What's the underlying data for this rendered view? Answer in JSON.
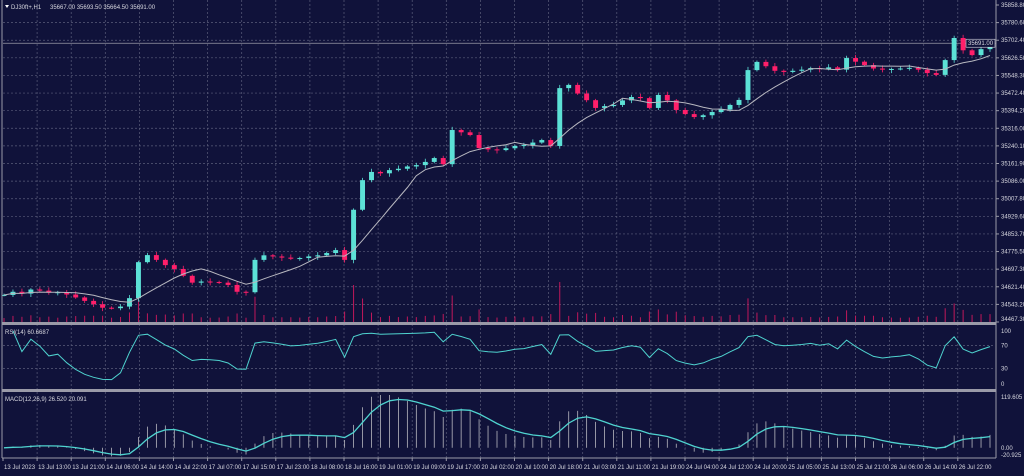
{
  "header": {
    "symbol_timeframe": "DJ30ft+,H1",
    "ohlc": "35667.00 35693.50 35664.50 35691.00"
  },
  "colors": {
    "background": "#10123a",
    "bull": "#5ce1d6",
    "bear": "#ff1f6a",
    "moving_average": "#b8b8c0",
    "volume": "#c0185a",
    "indicator_line": "#4fd3cf",
    "histogram": "#b8b8c0",
    "grid": "#5a5d7a"
  },
  "chart_data": [
    {
      "type": "candlestick",
      "title": "DJ30ft+,H1",
      "price_axis_labels": [
        "35858.80",
        "35780.60",
        "35702.40",
        "35626.50",
        "35548.30",
        "35472.40",
        "35394.20",
        "35316.00",
        "35240.10",
        "35161.90",
        "35086.00",
        "35007.80",
        "34929.60",
        "34853.70",
        "34775.50",
        "34697.30",
        "34621.40",
        "34543.20",
        "34467.30"
      ],
      "ylim": [
        34467.3,
        35858.8
      ],
      "current_price": "35691.00",
      "closes": [
        34586,
        34600,
        34592,
        34610,
        34605,
        34596,
        34598,
        34588,
        34575,
        34560,
        34545,
        34530,
        34528,
        34535,
        34572,
        34730,
        34761,
        34740,
        34717,
        34700,
        34670,
        34640,
        34645,
        34643,
        34640,
        34630,
        34600,
        34598,
        34740,
        34760,
        34755,
        34750,
        34745,
        34748,
        34755,
        34760,
        34770,
        34783,
        34740,
        34960,
        35090,
        35126,
        35120,
        35134,
        35140,
        35150,
        35156,
        35170,
        35187,
        35160,
        35310,
        35300,
        35288,
        35231,
        35225,
        35222,
        35230,
        35240,
        35244,
        35255,
        35266,
        35240,
        35494,
        35508,
        35470,
        35441,
        35407,
        35415,
        35420,
        35440,
        35455,
        35450,
        35407,
        35464,
        35440,
        35398,
        35380,
        35367,
        35375,
        35389,
        35400,
        35420,
        35442,
        35573,
        35609,
        35590,
        35570,
        35565,
        35570,
        35575,
        35582,
        35578,
        35585,
        35575,
        35626,
        35610,
        35595,
        35580,
        35575,
        35578,
        35580,
        35583,
        35575,
        35560,
        35552,
        35617,
        35714,
        35660,
        35639,
        35665,
        35691
      ],
      "overlays": [
        "moving average",
        "tick volume"
      ],
      "grid": true
    },
    {
      "type": "line",
      "title": "RSI(14) 60.6687",
      "axis_labels": [
        "100",
        "70",
        "30",
        "0"
      ],
      "levels": [
        100,
        70,
        30,
        0
      ],
      "ylim": [
        0,
        100
      ]
    },
    {
      "type": "line",
      "title": "MACD(12,26,9) 26.520 20.091",
      "axis_labels": [
        "119.605",
        "0.00",
        "-20.925"
      ],
      "levels": [
        119.605,
        0,
        -20.925
      ],
      "ylim": [
        -20.925,
        119.605
      ]
    }
  ],
  "time_axis": [
    "13 Jul 2023",
    "13 Jul 13:00",
    "13 Jul 21:00",
    "14 Jul 06:00",
    "14 Jul 14:00",
    "14 Jul 22:00",
    "17 Jul 07:00",
    "17 Jul 15:00",
    "17 Jul 23:00",
    "18 Jul 08:00",
    "18 Jul 16:00",
    "19 Jul 01:00",
    "19 Jul 09:00",
    "19 Jul 17:00",
    "20 Jul 02:00",
    "20 Jul 10:00",
    "20 Jul 18:00",
    "21 Jul 03:00",
    "21 Jul 11:00",
    "21 Jul 19:00",
    "24 Jul 04:00",
    "24 Jul 12:00",
    "24 Jul 20:00",
    "25 Jul 05:00",
    "25 Jul 13:00",
    "25 Jul 21:00",
    "26 Jul 06:00",
    "26 Jul 14:00",
    "26 Jul 22:00"
  ]
}
